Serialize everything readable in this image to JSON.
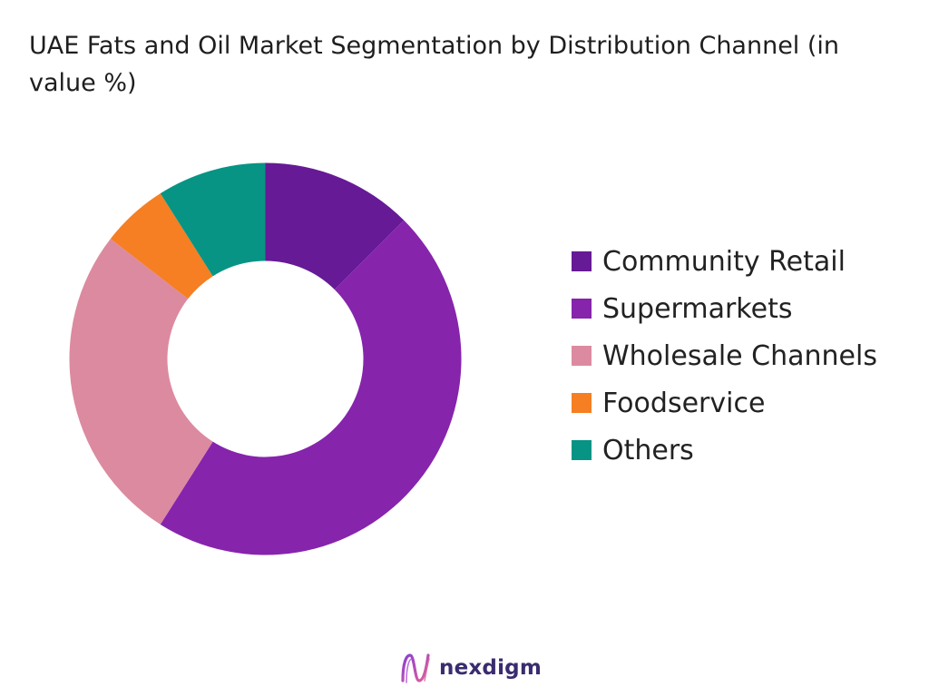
{
  "chart_data": {
    "type": "pie",
    "style": "donut",
    "title": "UAE Fats and Oil Market Segmentation by Distribution Channel (in value %)",
    "legend_position": "right",
    "series": [
      {
        "name": "Community Retail",
        "value": 12.5,
        "color": "#661a96"
      },
      {
        "name": "Supermarkets",
        "value": 46.5,
        "color": "#8624ac"
      },
      {
        "name": "Wholesale Channels",
        "value": 26.5,
        "color": "#dc8aa0"
      },
      {
        "name": "Foodservice",
        "value": 5.5,
        "color": "#f57f22"
      },
      {
        "name": "Others",
        "value": 9.0,
        "color": "#079484"
      }
    ]
  },
  "brand": {
    "name": "nexdigm",
    "icon": "nexdigm-logo-icon"
  }
}
